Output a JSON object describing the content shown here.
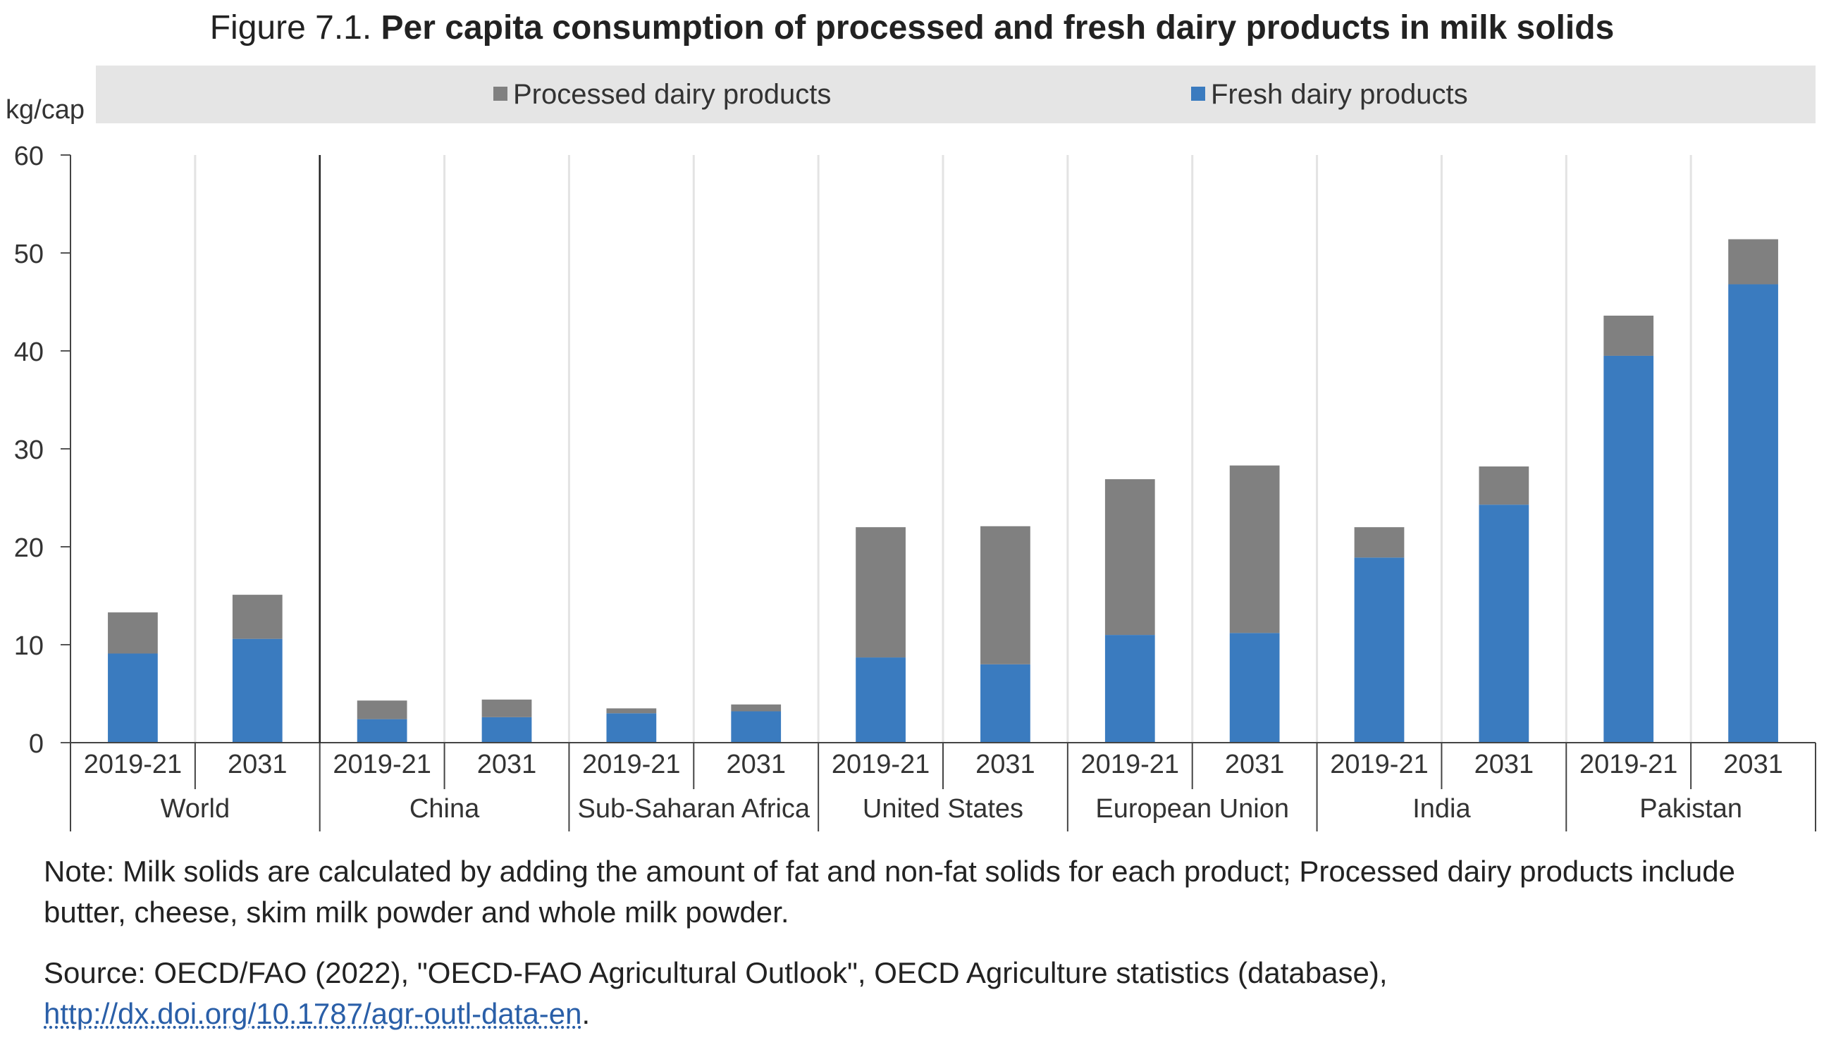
{
  "title": {
    "label": "Figure 7.1.",
    "text": "Per capita consumption of processed and fresh dairy products in milk solids"
  },
  "chart_data": {
    "type": "bar",
    "stacked": true,
    "ylabel": "kg/cap",
    "ylim": [
      0,
      60
    ],
    "yticks": [
      "0",
      "10",
      "20",
      "30",
      "40",
      "50",
      "60"
    ],
    "legend": [
      {
        "name": "Processed dairy products",
        "color": "#808080"
      },
      {
        "name": "Fresh dairy products",
        "color": "#3a7bbf"
      }
    ],
    "groups": [
      {
        "name": "World",
        "periods": [
          "2019-21",
          "2031"
        ]
      },
      {
        "name": "China",
        "periods": [
          "2019-21",
          "2031"
        ]
      },
      {
        "name": "Sub-Saharan Africa",
        "periods": [
          "2019-21",
          "2031"
        ]
      },
      {
        "name": "United States",
        "periods": [
          "2019-21",
          "2031"
        ]
      },
      {
        "name": "European Union",
        "periods": [
          "2019-21",
          "2031"
        ]
      },
      {
        "name": "India",
        "periods": [
          "2019-21",
          "2031"
        ]
      },
      {
        "name": "Pakistan",
        "periods": [
          "2019-21",
          "2031"
        ]
      }
    ],
    "series": [
      {
        "name": "Fresh dairy products",
        "color": "#3a7bbf",
        "values": [
          9.1,
          10.6,
          2.4,
          2.6,
          3.0,
          3.2,
          8.7,
          8.0,
          11.0,
          11.2,
          18.9,
          24.3,
          39.5,
          46.8
        ]
      },
      {
        "name": "Processed dairy products",
        "color": "#808080",
        "values": [
          4.2,
          4.5,
          1.9,
          1.8,
          0.5,
          0.7,
          13.3,
          14.1,
          15.9,
          17.1,
          3.1,
          3.9,
          4.1,
          4.6
        ]
      }
    ]
  },
  "notes": {
    "note": "Note: Milk solids are calculated by adding the amount of fat and non-fat solids for each product; Processed dairy products include butter, cheese, skim milk powder and whole milk powder.",
    "source_prefix": "Source: OECD/FAO (2022), \"OECD-FAO Agricultural Outlook\", OECD Agriculture statistics (database),",
    "source_link": "http://dx.doi.org/10.1787/agr-outl-data-en",
    "source_suffix": "."
  }
}
